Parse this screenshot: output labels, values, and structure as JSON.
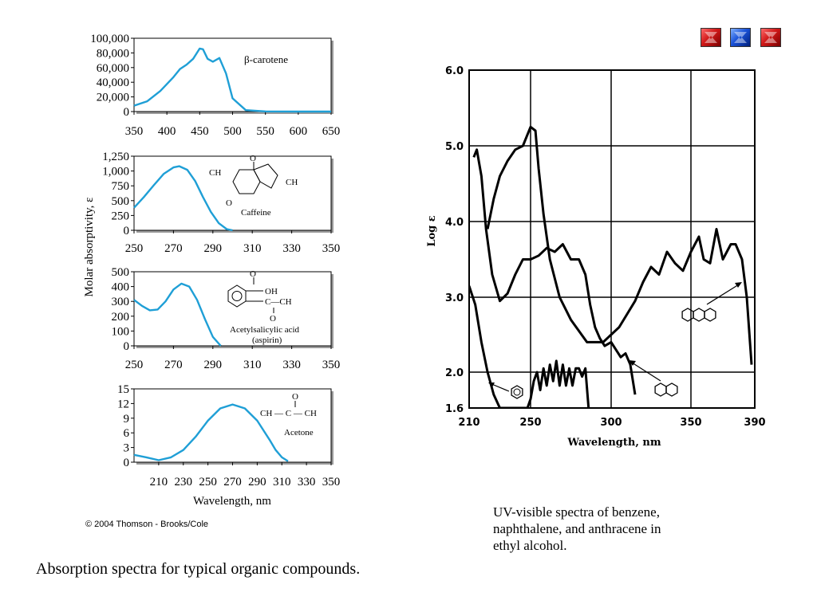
{
  "nav": {
    "buttons": [
      {
        "name": "nav-first-button",
        "color": "#d01818",
        "icon": "red-arrow-icon"
      },
      {
        "name": "nav-blue-button",
        "color": "#1a52d8",
        "icon": "blue-arrow-icon"
      },
      {
        "name": "nav-next-button",
        "color": "#d01818",
        "icon": "red-arrow-icon"
      }
    ]
  },
  "left_figure": {
    "y_axis_label": "Molar absorptivity, ε",
    "x_axis_label": "Wavelength, nm",
    "copyright": "© 2004 Thomson - Brooks/Cole",
    "caption": "Absorption spectra for typical organic compounds.",
    "line_color": "#1f9fd6"
  },
  "right_figure": {
    "caption_lines": [
      "UV-visible spectra of benzene,",
      "naphthalene, and anthracene in",
      "ethyl alcohol."
    ],
    "x_axis_label": "Wavelength, nm",
    "y_axis_label": "Log ε"
  },
  "chart_data": [
    {
      "type": "line",
      "compound_label": "β-carotene",
      "xlim": [
        350,
        650
      ],
      "ylim": [
        0,
        100000
      ],
      "x_ticks": [
        "350",
        "400",
        "450",
        "500",
        "550",
        "600",
        "650"
      ],
      "y_ticks": [
        "100,000",
        "80,000",
        "60,000",
        "40,000",
        "20,000",
        "0"
      ],
      "x": [
        350,
        370,
        390,
        410,
        420,
        430,
        440,
        450,
        455,
        462,
        470,
        480,
        490,
        500,
        520,
        550,
        600,
        650
      ],
      "y": [
        8000,
        14000,
        28000,
        47000,
        58000,
        64000,
        72000,
        86000,
        85000,
        72000,
        68000,
        73000,
        52000,
        18000,
        2000,
        200,
        0,
        0
      ]
    },
    {
      "type": "line",
      "compound_label": "Caffeine",
      "xlim": [
        250,
        350
      ],
      "ylim": [
        0,
        1250
      ],
      "x_ticks": [
        "250",
        "270",
        "290",
        "310",
        "330",
        "350"
      ],
      "y_ticks": [
        "1,250",
        "1,000",
        "750",
        "500",
        "250",
        "0"
      ],
      "x": [
        250,
        255,
        260,
        265,
        270,
        273,
        277,
        281,
        285,
        289,
        293,
        297,
        300
      ],
      "y": [
        380,
        560,
        760,
        950,
        1060,
        1080,
        1020,
        830,
        560,
        310,
        120,
        20,
        0
      ]
    },
    {
      "type": "line",
      "compound_label": "Acetylsalicylic acid (aspirin)",
      "xlim": [
        250,
        350
      ],
      "ylim": [
        0,
        500
      ],
      "x_ticks": [
        "250",
        "270",
        "290",
        "310",
        "330",
        "350"
      ],
      "y_ticks": [
        "500",
        "400",
        "300",
        "200",
        "100",
        "0"
      ],
      "x": [
        250,
        254,
        258,
        262,
        266,
        270,
        274,
        278,
        282,
        286,
        290,
        294
      ],
      "y": [
        310,
        270,
        240,
        245,
        300,
        380,
        420,
        400,
        310,
        180,
        60,
        0
      ]
    },
    {
      "type": "line",
      "compound_label": "Acetone",
      "xlim": [
        190,
        350
      ],
      "ylim": [
        0,
        15
      ],
      "x_ticks": [
        "210",
        "230",
        "250",
        "270",
        "290",
        "310",
        "330",
        "350"
      ],
      "y_ticks": [
        "15",
        "12",
        "9",
        "6",
        "3",
        "0"
      ],
      "x": [
        190,
        200,
        210,
        220,
        230,
        240,
        250,
        260,
        270,
        280,
        290,
        300,
        305,
        310,
        315
      ],
      "y": [
        1.5,
        1.0,
        0.4,
        1.0,
        2.5,
        5.2,
        8.5,
        11.0,
        11.8,
        11.0,
        8.5,
        4.6,
        2.5,
        1.0,
        0.2
      ]
    },
    {
      "type": "line",
      "xlim": [
        210,
        390
      ],
      "ylim": [
        1.6,
        6.0
      ],
      "x_ticks": [
        "210",
        "250",
        "300",
        "350",
        "390"
      ],
      "y_ticks": [
        "6.0",
        "5.0",
        "4.0",
        "3.0",
        "2.0",
        "1.6"
      ],
      "series": [
        {
          "icon": "benzene-structure-icon",
          "x": [
            210,
            214,
            218,
            222,
            226,
            230,
            235,
            240,
            248,
            250,
            252,
            254,
            256,
            258,
            260,
            262,
            264,
            266,
            268,
            270,
            272,
            274,
            276,
            278,
            280,
            282,
            284,
            286
          ],
          "y": [
            3.15,
            2.9,
            2.4,
            2.0,
            1.75,
            1.6,
            1.6,
            1.6,
            1.6,
            1.7,
            1.9,
            2.0,
            1.8,
            2.05,
            1.85,
            2.1,
            1.9,
            2.15,
            1.85,
            2.1,
            1.85,
            2.05,
            1.85,
            2.05,
            2.05,
            1.95,
            2.05,
            1.6
          ]
        },
        {
          "icon": "naphthalene-structure-icon",
          "x": [
            213,
            215,
            218,
            221,
            225,
            230,
            235,
            240,
            245,
            250,
            255,
            260,
            265,
            270,
            275,
            280,
            284,
            287,
            290,
            293,
            296,
            300,
            303,
            306,
            309,
            312,
            315
          ],
          "y": [
            4.85,
            4.95,
            4.6,
            3.9,
            3.3,
            2.95,
            3.05,
            3.3,
            3.5,
            3.5,
            3.55,
            3.65,
            3.6,
            3.7,
            3.5,
            3.5,
            3.3,
            2.9,
            2.6,
            2.45,
            2.35,
            2.4,
            2.3,
            2.2,
            2.25,
            2.1,
            1.75
          ]
        },
        {
          "icon": "anthracene-structure-icon",
          "x": [
            222,
            226,
            230,
            235,
            240,
            245,
            250,
            253,
            255,
            258,
            262,
            268,
            275,
            285,
            295,
            305,
            315,
            320,
            325,
            330,
            335,
            340,
            345,
            350,
            355,
            358,
            362,
            366,
            370,
            375,
            378,
            382,
            385,
            388
          ],
          "y": [
            3.9,
            4.3,
            4.6,
            4.8,
            4.95,
            5.0,
            5.25,
            5.2,
            4.7,
            4.1,
            3.5,
            3.0,
            2.7,
            2.4,
            2.4,
            2.6,
            2.95,
            3.2,
            3.4,
            3.3,
            3.6,
            3.45,
            3.35,
            3.6,
            3.8,
            3.5,
            3.45,
            3.9,
            3.5,
            3.7,
            3.7,
            3.5,
            3.0,
            2.1
          ]
        }
      ]
    }
  ]
}
